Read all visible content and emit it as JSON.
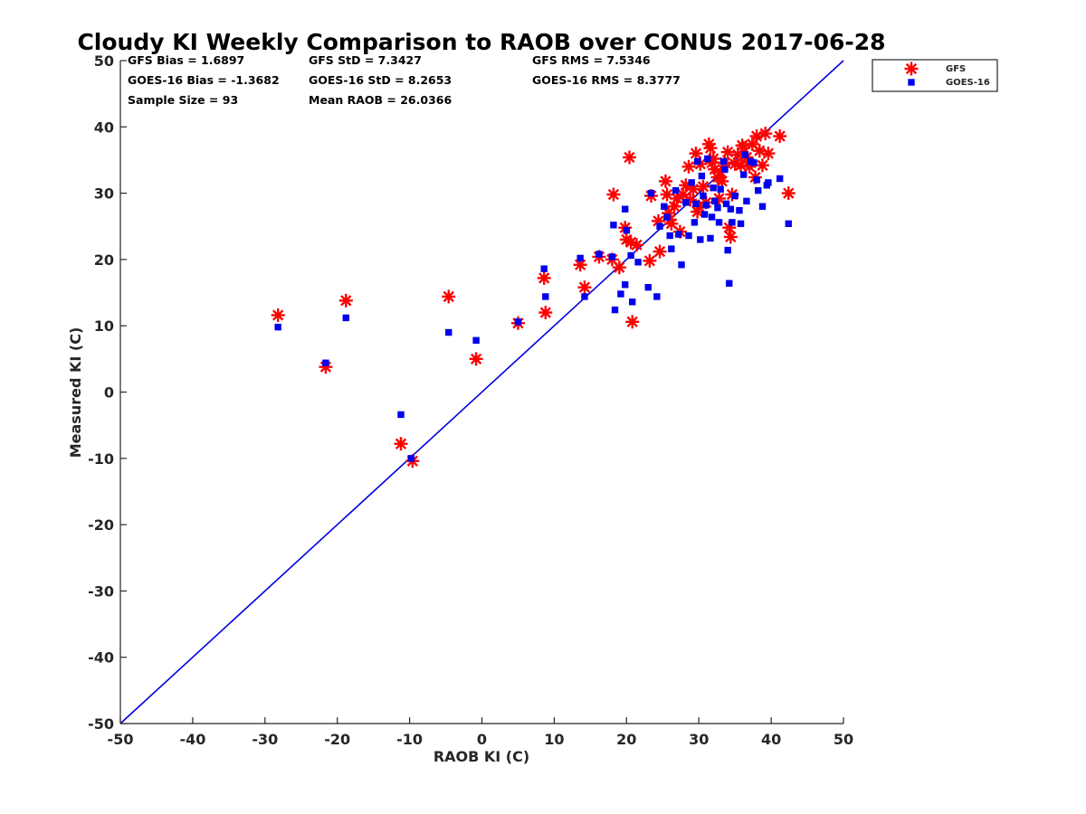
{
  "chart_data": {
    "type": "scatter",
    "title": "Cloudy KI Weekly Comparison to RAOB over CONUS 2017-06-28",
    "xlabel": "RAOB KI (C)",
    "ylabel": "Measured KI (C)",
    "xlim": [
      -50,
      50
    ],
    "ylim": [
      -50,
      50
    ],
    "xticks": [
      "-50",
      "-40",
      "-30",
      "-20",
      "-10",
      "0",
      "10",
      "20",
      "30",
      "40",
      "50"
    ],
    "yticks": [
      "50",
      "40",
      "30",
      "20",
      "10",
      "0",
      "-10",
      "-20",
      "-30",
      "-40",
      "-50"
    ],
    "grid": false,
    "legend_position": "top-right, outside plot",
    "reference_line": {
      "from": [
        -50,
        -50
      ],
      "to": [
        50,
        50
      ],
      "color": "#0000dd"
    },
    "stats": [
      "GFS Bias = 1.6897",
      "GFS StD = 7.3427",
      "GFS RMS = 7.5346",
      "GOES-16 Bias = -1.3682",
      "GOES-16 StD = 8.2653",
      "GOES-16 RMS = 8.3777",
      "Sample Size = 93",
      "Mean RAOB = 26.0366"
    ],
    "series": [
      {
        "name": "GFS",
        "marker": "asterisk",
        "color": "#ff0000",
        "points": [
          [
            -28.2,
            11.6
          ],
          [
            -21.6,
            3.8
          ],
          [
            -18.8,
            13.8
          ],
          [
            -11.2,
            -7.8
          ],
          [
            -9.6,
            -10.4
          ],
          [
            -4.6,
            14.4
          ],
          [
            -0.8,
            5.0
          ],
          [
            5.0,
            10.4
          ],
          [
            8.6,
            17.2
          ],
          [
            8.8,
            12.0
          ],
          [
            13.6,
            19.2
          ],
          [
            14.2,
            15.8
          ],
          [
            16.2,
            20.4
          ],
          [
            18.0,
            20.0
          ],
          [
            18.2,
            29.8
          ],
          [
            19.0,
            18.8
          ],
          [
            19.8,
            24.8
          ],
          [
            20.0,
            23.0
          ],
          [
            20.4,
            35.4
          ],
          [
            20.6,
            22.6
          ],
          [
            20.8,
            10.6
          ],
          [
            21.4,
            22.2
          ],
          [
            23.2,
            19.8
          ],
          [
            23.4,
            29.6
          ],
          [
            24.4,
            25.8
          ],
          [
            24.6,
            21.2
          ],
          [
            25.4,
            31.8
          ],
          [
            25.6,
            29.8
          ],
          [
            25.8,
            27.0
          ],
          [
            26.2,
            25.4
          ],
          [
            26.6,
            28.0
          ],
          [
            27.0,
            29.2
          ],
          [
            27.4,
            24.2
          ],
          [
            27.8,
            29.8
          ],
          [
            28.2,
            31.2
          ],
          [
            28.6,
            34.0
          ],
          [
            28.8,
            29.0
          ],
          [
            29.2,
            30.6
          ],
          [
            29.6,
            36.0
          ],
          [
            29.8,
            27.2
          ],
          [
            30.2,
            34.4
          ],
          [
            30.6,
            31.0
          ],
          [
            31.0,
            28.6
          ],
          [
            31.4,
            37.4
          ],
          [
            31.6,
            36.8
          ],
          [
            31.8,
            34.6
          ],
          [
            32.2,
            33.6
          ],
          [
            32.6,
            32.4
          ],
          [
            32.8,
            29.2
          ],
          [
            33.2,
            31.8
          ],
          [
            33.6,
            34.6
          ],
          [
            34.0,
            36.2
          ],
          [
            34.2,
            24.8
          ],
          [
            34.4,
            23.4
          ],
          [
            34.6,
            29.8
          ],
          [
            35.0,
            34.4
          ],
          [
            35.4,
            35.8
          ],
          [
            35.8,
            34.2
          ],
          [
            36.2,
            36.8
          ],
          [
            36.6,
            35.4
          ],
          [
            37.0,
            34.0
          ],
          [
            37.4,
            37.4
          ],
          [
            37.8,
            32.4
          ],
          [
            38.0,
            38.6
          ],
          [
            38.4,
            36.4
          ],
          [
            38.8,
            34.2
          ],
          [
            39.2,
            39.0
          ],
          [
            39.6,
            36.0
          ],
          [
            41.2,
            38.6
          ],
          [
            42.4,
            30.0
          ],
          [
            33.0,
            33.2
          ],
          [
            30.0,
            28.0
          ],
          [
            26.0,
            26.0
          ],
          [
            32.0,
            35.2
          ],
          [
            36.0,
            37.2
          ]
        ]
      },
      {
        "name": "GOES-16",
        "marker": "square",
        "color": "#0000ee",
        "points": [
          [
            -28.2,
            9.8
          ],
          [
            -21.6,
            4.4
          ],
          [
            -18.8,
            11.2
          ],
          [
            -11.2,
            -3.4
          ],
          [
            -9.8,
            -10.0
          ],
          [
            -4.6,
            9.0
          ],
          [
            -0.8,
            7.8
          ],
          [
            5.0,
            10.6
          ],
          [
            8.6,
            18.6
          ],
          [
            8.8,
            14.4
          ],
          [
            13.6,
            20.2
          ],
          [
            14.2,
            14.4
          ],
          [
            16.2,
            20.8
          ],
          [
            18.0,
            20.4
          ],
          [
            18.2,
            25.2
          ],
          [
            18.4,
            12.4
          ],
          [
            19.2,
            14.8
          ],
          [
            19.8,
            16.2
          ],
          [
            19.8,
            27.6
          ],
          [
            20.0,
            24.4
          ],
          [
            20.6,
            20.6
          ],
          [
            20.8,
            13.6
          ],
          [
            21.6,
            19.6
          ],
          [
            23.0,
            15.8
          ],
          [
            23.4,
            30.0
          ],
          [
            24.2,
            14.4
          ],
          [
            24.6,
            25.0
          ],
          [
            25.2,
            28.0
          ],
          [
            25.6,
            26.4
          ],
          [
            26.0,
            23.6
          ],
          [
            26.2,
            21.6
          ],
          [
            26.8,
            30.4
          ],
          [
            27.2,
            23.8
          ],
          [
            27.6,
            19.2
          ],
          [
            28.2,
            28.6
          ],
          [
            28.6,
            23.6
          ],
          [
            29.0,
            31.6
          ],
          [
            29.4,
            25.6
          ],
          [
            29.6,
            28.4
          ],
          [
            29.8,
            34.8
          ],
          [
            30.2,
            23.0
          ],
          [
            30.4,
            32.6
          ],
          [
            30.6,
            29.6
          ],
          [
            31.0,
            28.2
          ],
          [
            31.2,
            35.2
          ],
          [
            31.6,
            23.2
          ],
          [
            31.8,
            26.4
          ],
          [
            32.0,
            30.8
          ],
          [
            32.2,
            28.8
          ],
          [
            32.6,
            27.8
          ],
          [
            32.8,
            25.6
          ],
          [
            33.0,
            30.6
          ],
          [
            33.4,
            34.8
          ],
          [
            33.6,
            33.6
          ],
          [
            33.8,
            28.4
          ],
          [
            34.0,
            21.4
          ],
          [
            34.2,
            16.4
          ],
          [
            34.4,
            27.6
          ],
          [
            34.6,
            25.6
          ],
          [
            35.0,
            29.6
          ],
          [
            35.8,
            25.4
          ],
          [
            36.2,
            32.8
          ],
          [
            36.6,
            28.8
          ],
          [
            37.2,
            34.8
          ],
          [
            37.6,
            34.6
          ],
          [
            38.0,
            32.0
          ],
          [
            38.2,
            30.4
          ],
          [
            38.8,
            28.0
          ],
          [
            39.4,
            31.2
          ],
          [
            39.6,
            31.6
          ],
          [
            41.2,
            32.2
          ],
          [
            42.4,
            25.4
          ],
          [
            36.4,
            35.8
          ],
          [
            35.6,
            27.4
          ],
          [
            30.8,
            26.8
          ]
        ]
      }
    ]
  }
}
